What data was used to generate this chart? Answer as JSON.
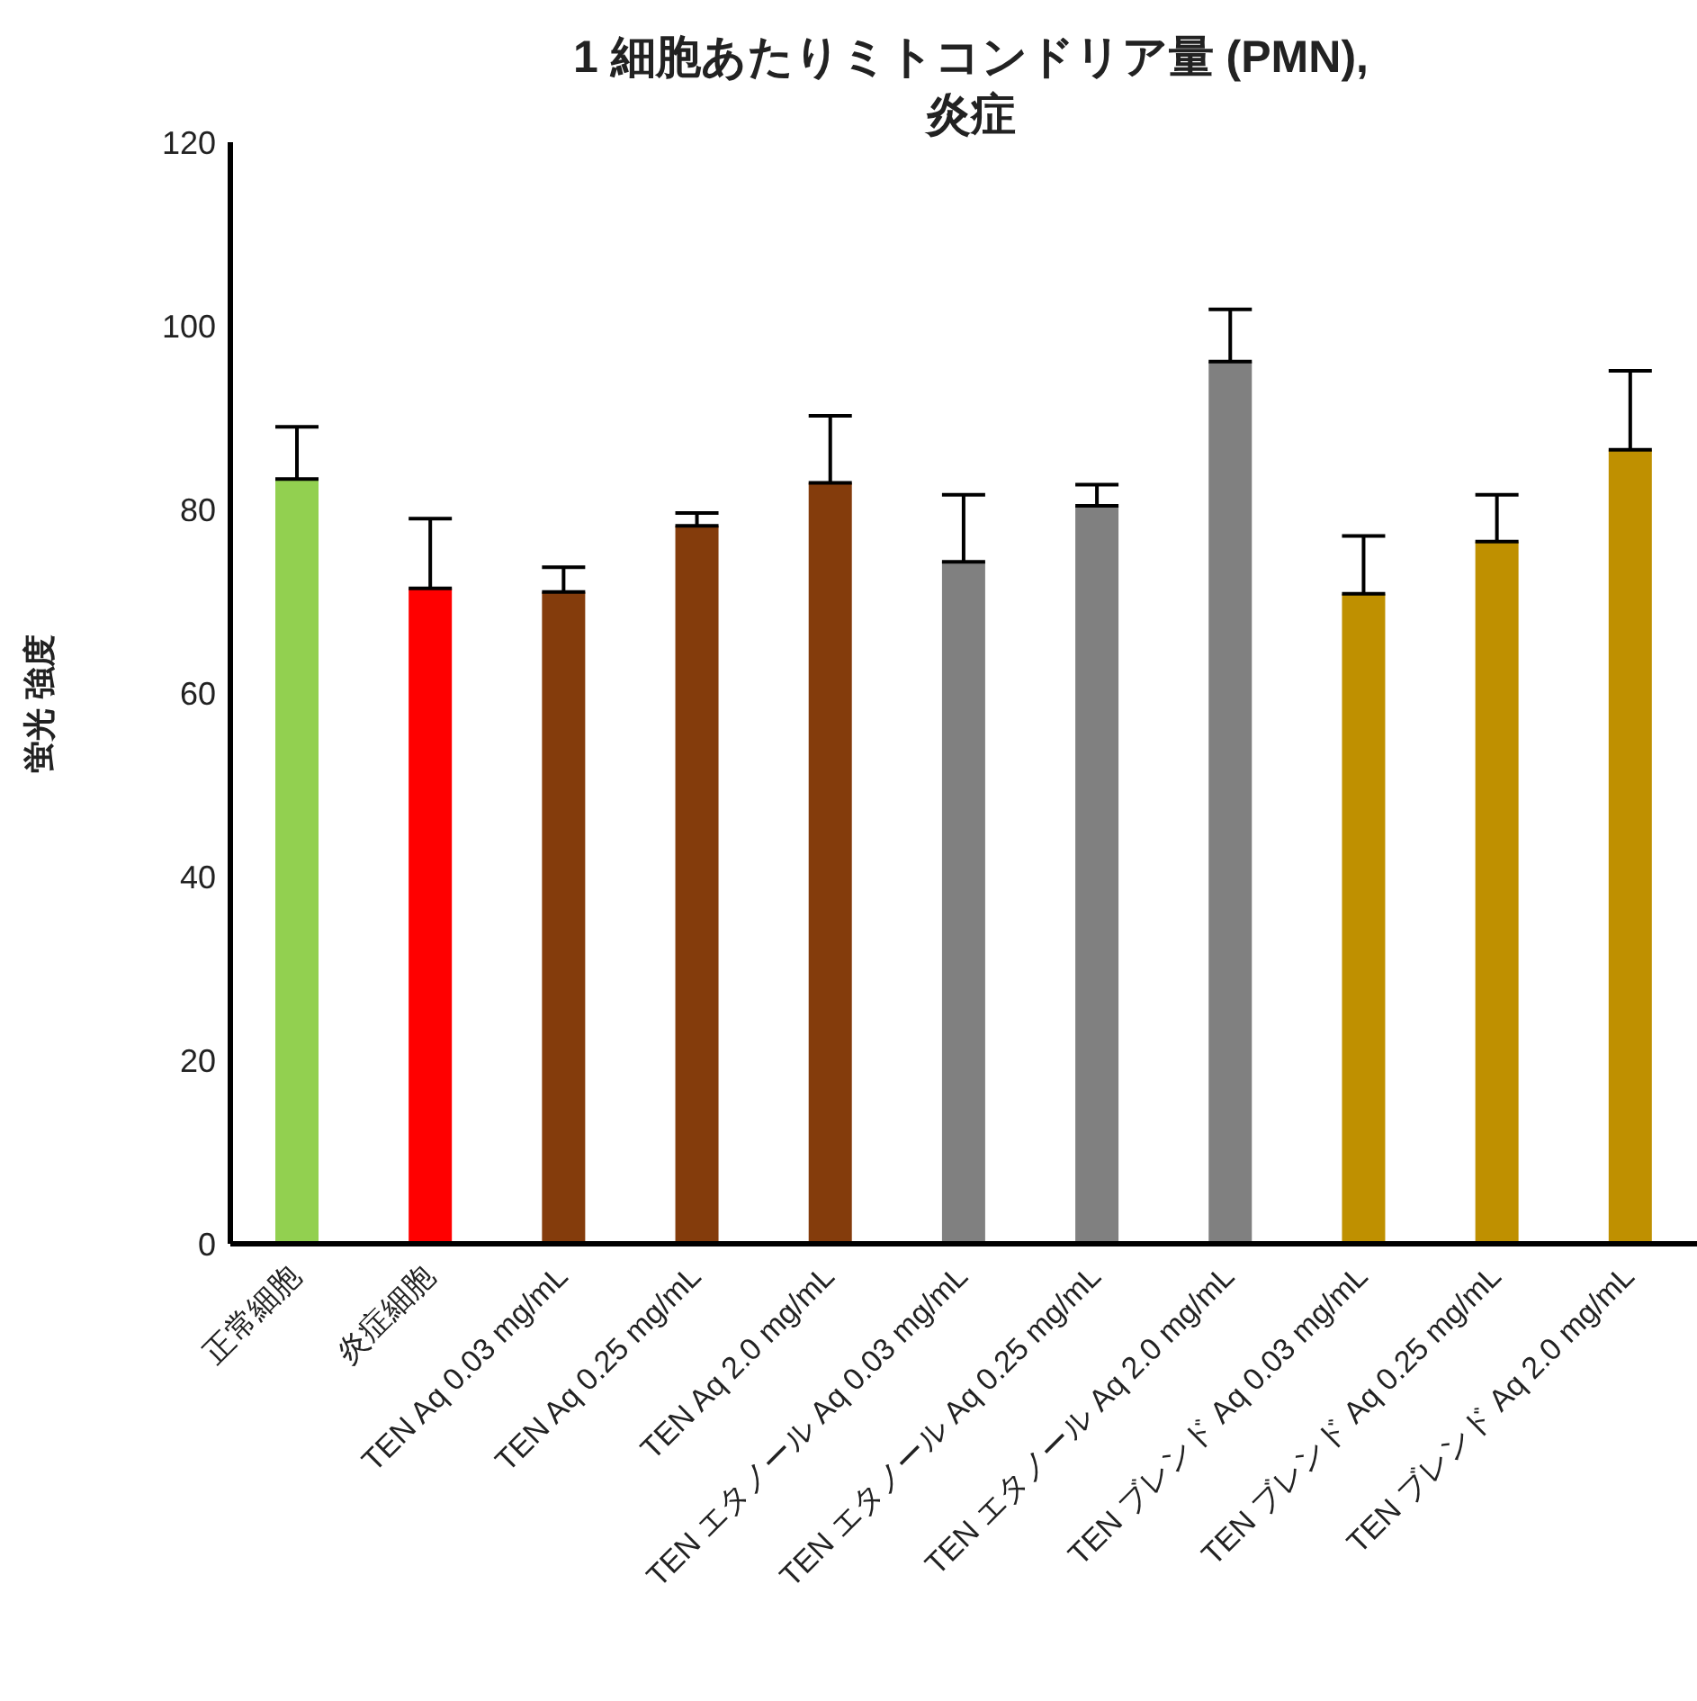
{
  "chart_data": {
    "type": "bar",
    "title": "1 細胞あたりミトコンドリア量 (PMN),\n炎症",
    "ylabel": "蛍光 強度",
    "categories": [
      "正常細胞",
      "炎症細胞",
      "TEN Aq 0.03 mg/mL",
      "TEN Aq 0.25 mg/mL",
      "TEN Aq 2.0 mg/mL",
      "TEN エタノール Aq 0.03 mg/mL",
      "TEN エタノール Aq 0.25 mg/mL",
      "TEN エタノール Aq 2.0 mg/mL",
      "TEN ブレンド Aq 0.03 mg/mL",
      "TEN ブレンド Aq 0.25 mg/mL",
      "TEN ブレンド Aq 2.0 mg/mL"
    ],
    "values": [
      83.3,
      71.4,
      71.0,
      78.2,
      82.9,
      74.3,
      80.4,
      96.1,
      70.8,
      76.5,
      86.5
    ],
    "colors": [
      "#92d050",
      "#ff0000",
      "#843c0c",
      "#843c0c",
      "#843c0c",
      "#808080",
      "#808080",
      "#808080",
      "#bf9000",
      "#bf9000",
      "#bf9000"
    ],
    "errors": [
      [
        83.3,
        89.0
      ],
      [
        71.4,
        79.0
      ],
      [
        71.0,
        73.7
      ],
      [
        78.2,
        79.6
      ],
      [
        82.9,
        90.2
      ],
      [
        74.3,
        81.6
      ],
      [
        80.4,
        82.7
      ],
      [
        96.1,
        101.8
      ],
      [
        70.8,
        77.1
      ],
      [
        76.5,
        81.6
      ],
      [
        86.5,
        95.1
      ]
    ],
    "ylim": [
      0,
      120
    ],
    "yticks": [
      0,
      20,
      40,
      60,
      80,
      100,
      120
    ],
    "grid": false,
    "legend": false
  }
}
